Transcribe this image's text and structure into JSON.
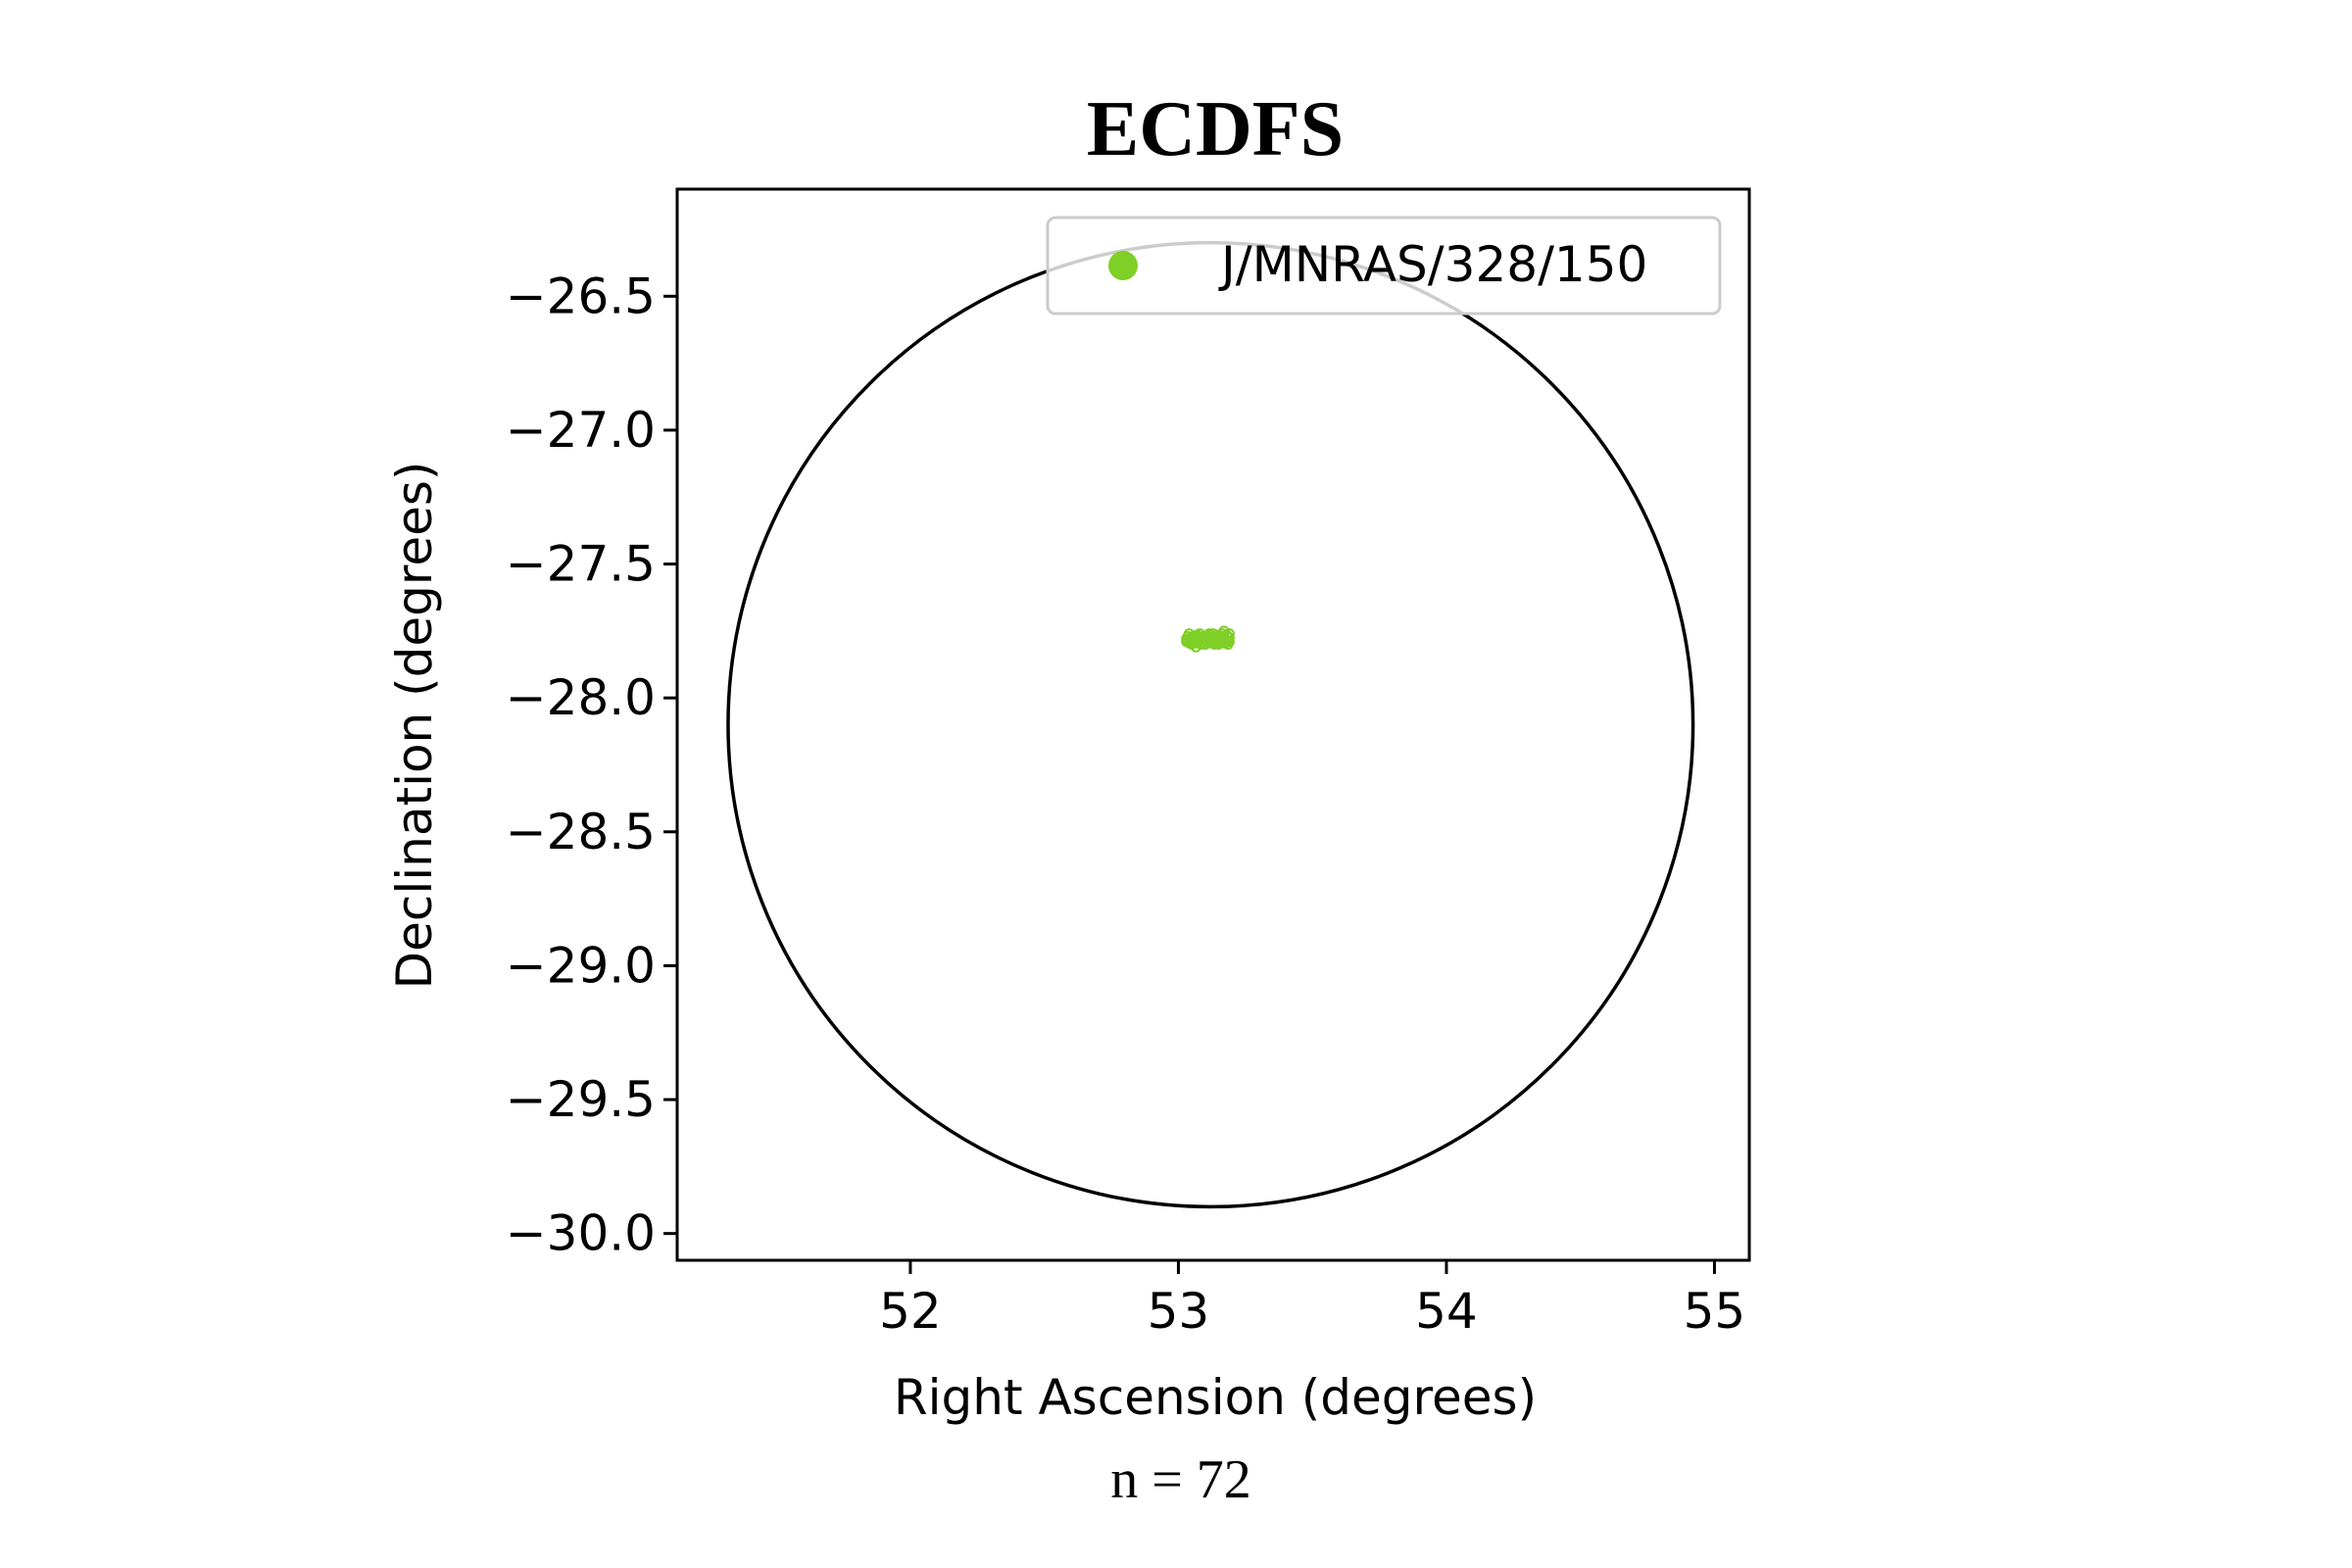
{
  "chart_data": {
    "type": "scatter",
    "title": "ECDFS",
    "xlabel": "Right Ascension (degrees)",
    "ylabel": "Declination (degrees)",
    "caption": "n = 72",
    "xlim": [
      51.13,
      55.13
    ],
    "ylim": [
      -30.1,
      -26.1
    ],
    "xticks": [
      52,
      53,
      54,
      55
    ],
    "xtick_labels": [
      "52",
      "53",
      "54",
      "55"
    ],
    "yticks": [
      -26.5,
      -27.0,
      -27.5,
      -28.0,
      -28.5,
      -29.0,
      -29.5,
      -30.0
    ],
    "ytick_labels": [
      "−26.5",
      "−27.0",
      "−27.5",
      "−28.0",
      "−28.5",
      "−29.0",
      "−29.5",
      "−30.0"
    ],
    "grid": false,
    "legend": {
      "placement": "top-right",
      "entries": [
        "J/MNRAS/328/150"
      ]
    },
    "circle": {
      "center_ra": 53.12,
      "center_dec": -28.1,
      "radius_deg": 1.8
    },
    "series": [
      {
        "name": "J/MNRAS/328/150",
        "color": "#7ecf27",
        "marker": "open-circle",
        "points": [
          [
            53.03,
            -27.78
          ],
          [
            53.04,
            -27.76
          ],
          [
            53.05,
            -27.8
          ],
          [
            53.06,
            -27.77
          ],
          [
            53.07,
            -27.79
          ],
          [
            53.08,
            -27.76
          ],
          [
            53.09,
            -27.78
          ],
          [
            53.1,
            -27.8
          ],
          [
            53.11,
            -27.77
          ],
          [
            53.12,
            -27.79
          ],
          [
            53.13,
            -27.76
          ],
          [
            53.14,
            -27.78
          ],
          [
            53.15,
            -27.8
          ],
          [
            53.16,
            -27.77
          ],
          [
            53.17,
            -27.75
          ],
          [
            53.18,
            -27.79
          ],
          [
            53.19,
            -27.76
          ],
          [
            53.045,
            -27.79
          ],
          [
            53.055,
            -27.77
          ],
          [
            53.065,
            -27.81
          ],
          [
            53.075,
            -27.78
          ],
          [
            53.085,
            -27.8
          ],
          [
            53.095,
            -27.77
          ],
          [
            53.105,
            -27.79
          ],
          [
            53.115,
            -27.76
          ],
          [
            53.125,
            -27.78
          ],
          [
            53.135,
            -27.8
          ],
          [
            53.145,
            -27.77
          ],
          [
            53.155,
            -27.79
          ],
          [
            53.165,
            -27.76
          ],
          [
            53.175,
            -27.78
          ],
          [
            53.185,
            -27.8
          ],
          [
            53.035,
            -27.77
          ],
          [
            53.05,
            -27.785
          ],
          [
            53.07,
            -27.765
          ],
          [
            53.09,
            -27.795
          ],
          [
            53.11,
            -27.775
          ],
          [
            53.13,
            -27.785
          ],
          [
            53.15,
            -27.765
          ],
          [
            53.17,
            -27.785
          ],
          [
            53.19,
            -27.775
          ],
          [
            53.04,
            -27.795
          ],
          [
            53.06,
            -27.785
          ],
          [
            53.08,
            -27.79
          ],
          [
            53.1,
            -27.77
          ],
          [
            53.12,
            -27.765
          ],
          [
            53.14,
            -27.79
          ],
          [
            53.16,
            -27.785
          ],
          [
            53.18,
            -27.765
          ],
          [
            53.035,
            -27.785
          ],
          [
            53.055,
            -27.795
          ],
          [
            53.075,
            -27.77
          ],
          [
            53.095,
            -27.785
          ],
          [
            53.115,
            -27.795
          ],
          [
            53.135,
            -27.77
          ],
          [
            53.155,
            -27.78
          ],
          [
            53.175,
            -27.795
          ],
          [
            53.185,
            -27.77
          ],
          [
            53.045,
            -27.775
          ],
          [
            53.065,
            -27.79
          ],
          [
            53.085,
            -27.775
          ],
          [
            53.105,
            -27.78
          ],
          [
            53.125,
            -27.795
          ],
          [
            53.145,
            -27.785
          ],
          [
            53.165,
            -27.795
          ],
          [
            53.18,
            -27.785
          ],
          [
            53.19,
            -27.79
          ],
          [
            53.03,
            -27.79
          ],
          [
            53.07,
            -27.795
          ],
          [
            53.11,
            -27.785
          ],
          [
            53.15,
            -27.795
          ],
          [
            53.17,
            -27.77
          ]
        ]
      }
    ]
  }
}
